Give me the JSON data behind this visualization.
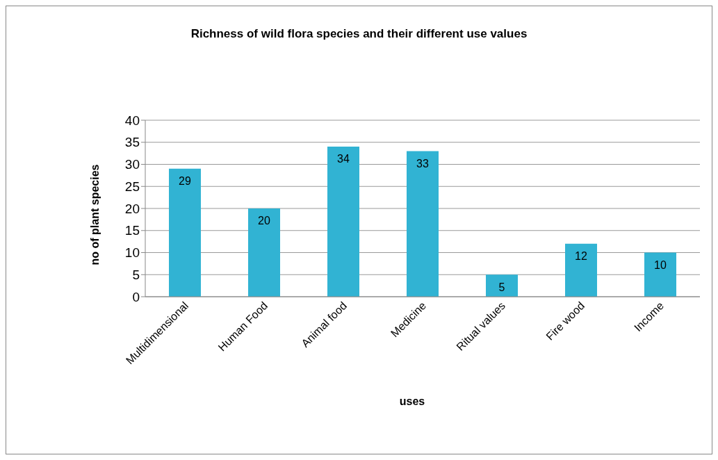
{
  "chart_data": {
    "type": "bar",
    "title": "Richness of wild flora species and their different use values",
    "xlabel": "uses",
    "ylabel": "no of plant species",
    "categories": [
      "Multidimensional",
      "Human Food",
      "Animal food",
      "Medicine",
      "Ritual values",
      "Fire wood",
      "Income"
    ],
    "values": [
      29,
      20,
      34,
      33,
      5,
      12,
      10
    ],
    "color": "#31b3d3",
    "ylim": [
      0,
      40
    ],
    "yticks": [
      0,
      5,
      10,
      15,
      20,
      25,
      30,
      35,
      40
    ],
    "grid": "y",
    "data_labels": true,
    "legend": false
  }
}
